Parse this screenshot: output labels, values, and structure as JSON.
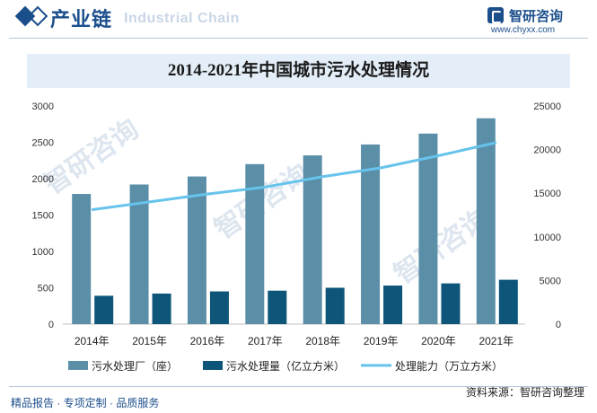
{
  "header": {
    "title": "产业链",
    "subtitle": "Industrial Chain"
  },
  "logo": {
    "name": "智研咨询",
    "url": "www.chyxx.com"
  },
  "watermark_text": "智研咨询",
  "footer": {
    "left": "精品报告 · 专项定制 · 品质服务",
    "source": "资料来源：智研咨询整理"
  },
  "colors": {
    "brand": "#1b4f8c",
    "factories": "#5b8fa8",
    "volume": "#0d5579",
    "capacity": "#66c3ec",
    "title_band": "#e4eef8"
  },
  "chart_data": {
    "type": "bar",
    "title": "2014-2021年中国城市污水处理情况",
    "categories": [
      "2014年",
      "2015年",
      "2016年",
      "2017年",
      "2018年",
      "2019年",
      "2020年",
      "2021年"
    ],
    "series": [
      {
        "name": "污水处理厂（座）",
        "type": "bar",
        "axis": "left",
        "values": [
          1790,
          1920,
          2030,
          2200,
          2320,
          2470,
          2620,
          2830
        ]
      },
      {
        "name": "污水处理量（亿立方米）",
        "type": "bar",
        "axis": "left",
        "values": [
          390,
          420,
          450,
          460,
          500,
          530,
          560,
          610
        ]
      },
      {
        "name": "处理能力（万立方米）",
        "type": "line",
        "axis": "right",
        "values": [
          13100,
          14000,
          14900,
          15700,
          16900,
          17900,
          19300,
          20800
        ]
      }
    ],
    "y_left": {
      "ylim": [
        0,
        3000
      ],
      "ticks": [
        "0",
        "500",
        "1000",
        "1500",
        "2000",
        "2500",
        "3000"
      ]
    },
    "y_right": {
      "ylim": [
        0,
        25000
      ],
      "ticks": [
        "0",
        "5000",
        "10000",
        "15000",
        "20000",
        "25000"
      ]
    },
    "grid": false,
    "legend": "bottom"
  }
}
